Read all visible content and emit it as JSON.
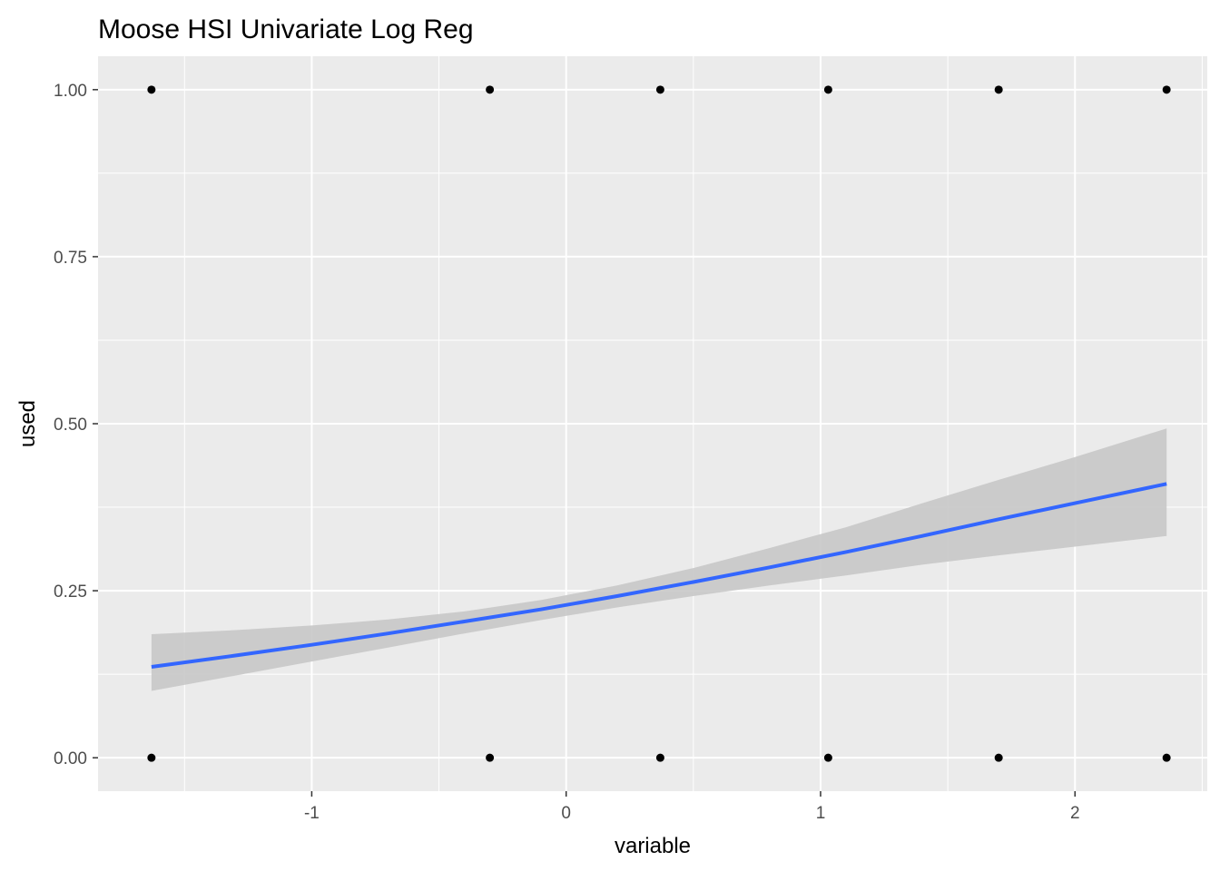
{
  "chart_data": {
    "type": "scatter",
    "title": "Moose HSI Univariate Log Reg",
    "xlabel": "variable",
    "ylabel": "used",
    "xlim": [
      -1.84,
      2.52
    ],
    "ylim": [
      -0.05,
      1.05
    ],
    "x_ticks": [
      -1,
      0,
      1,
      2
    ],
    "x_tick_labels": [
      "-1",
      "0",
      "1",
      "2"
    ],
    "y_ticks": [
      0,
      0.25,
      0.5,
      0.75,
      1
    ],
    "y_tick_labels": [
      "0.00",
      "0.25",
      "0.50",
      "0.75",
      "1.00"
    ],
    "grid": true,
    "points": [
      {
        "x": -1.63,
        "y": 1
      },
      {
        "x": -0.3,
        "y": 1
      },
      {
        "x": 0.37,
        "y": 1
      },
      {
        "x": 1.03,
        "y": 1
      },
      {
        "x": 1.7,
        "y": 1
      },
      {
        "x": 2.36,
        "y": 1
      },
      {
        "x": -1.63,
        "y": 0
      },
      {
        "x": -0.3,
        "y": 0
      },
      {
        "x": 0.37,
        "y": 0
      },
      {
        "x": 1.03,
        "y": 0
      },
      {
        "x": 1.7,
        "y": 0
      },
      {
        "x": 2.36,
        "y": 0
      }
    ],
    "fit": {
      "x": [
        -1.63,
        -1.3,
        -1.0,
        -0.7,
        -0.4,
        -0.1,
        0.2,
        0.5,
        0.8,
        1.1,
        1.4,
        1.7,
        2.0,
        2.36
      ],
      "y": [
        0.136,
        0.153,
        0.169,
        0.186,
        0.204,
        0.222,
        0.242,
        0.263,
        0.285,
        0.308,
        0.332,
        0.357,
        0.381,
        0.41
      ],
      "lower": [
        0.1,
        0.123,
        0.144,
        0.165,
        0.186,
        0.206,
        0.225,
        0.242,
        0.258,
        0.273,
        0.289,
        0.303,
        0.316,
        0.332
      ],
      "upper": [
        0.185,
        0.191,
        0.198,
        0.207,
        0.219,
        0.236,
        0.258,
        0.284,
        0.314,
        0.345,
        0.381,
        0.416,
        0.45,
        0.493
      ]
    },
    "colors": {
      "panel": "#ebebeb",
      "grid": "#ffffff",
      "fit_line": "#3366ff",
      "ribbon": "#c8c8c8",
      "points": "#000000"
    }
  }
}
